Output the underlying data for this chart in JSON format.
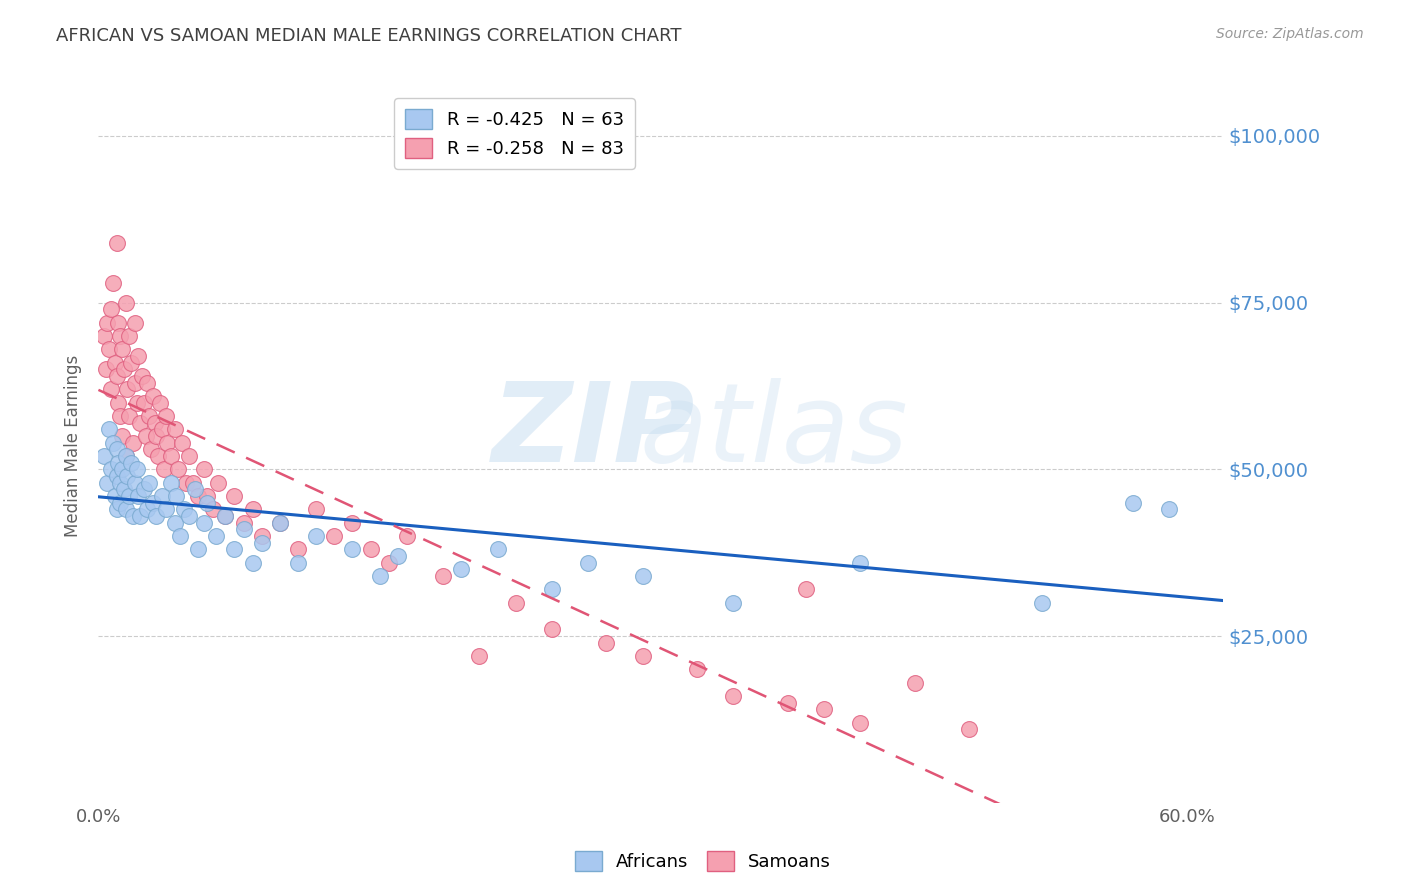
{
  "title": "AFRICAN VS SAMOAN MEDIAN MALE EARNINGS CORRELATION CHART",
  "source": "Source: ZipAtlas.com",
  "ylabel": "Median Male Earnings",
  "watermark_zip": "ZIP",
  "watermark_atlas": "atlas",
  "legend_entries": [
    {
      "label": "R = -0.425   N = 63",
      "color": "#a8c8f0",
      "edge": "#7aaad0"
    },
    {
      "label": "R = -0.258   N = 83",
      "color": "#f5a0b0",
      "edge": "#e06080"
    }
  ],
  "legend_labels_bottom": [
    "Africans",
    "Samoans"
  ],
  "ytick_labels": [
    "$25,000",
    "$50,000",
    "$75,000",
    "$100,000"
  ],
  "ytick_values": [
    25000,
    50000,
    75000,
    100000
  ],
  "ylim": [
    0,
    107000
  ],
  "xlim": [
    0.0,
    0.62
  ],
  "african_color": "#a8c8f0",
  "african_edge": "#7aaad0",
  "samoan_color": "#f5a0b0",
  "samoan_edge": "#e06080",
  "african_line_color": "#1a5fbf",
  "samoan_line_color": "#e05575",
  "background_color": "#ffffff",
  "grid_color": "#cccccc",
  "title_color": "#404040",
  "axis_label_color": "#606060",
  "right_tick_color": "#5090d0",
  "africans_x": [
    0.003,
    0.005,
    0.006,
    0.007,
    0.008,
    0.009,
    0.01,
    0.01,
    0.01,
    0.011,
    0.012,
    0.012,
    0.013,
    0.014,
    0.015,
    0.015,
    0.016,
    0.017,
    0.018,
    0.019,
    0.02,
    0.021,
    0.022,
    0.023,
    0.025,
    0.027,
    0.028,
    0.03,
    0.032,
    0.035,
    0.037,
    0.04,
    0.042,
    0.043,
    0.045,
    0.047,
    0.05,
    0.053,
    0.055,
    0.058,
    0.06,
    0.065,
    0.07,
    0.075,
    0.08,
    0.085,
    0.09,
    0.1,
    0.11,
    0.12,
    0.14,
    0.155,
    0.165,
    0.2,
    0.22,
    0.25,
    0.27,
    0.3,
    0.35,
    0.42,
    0.52,
    0.57,
    0.59
  ],
  "africans_y": [
    52000,
    48000,
    56000,
    50000,
    54000,
    46000,
    53000,
    49000,
    44000,
    51000,
    48000,
    45000,
    50000,
    47000,
    52000,
    44000,
    49000,
    46000,
    51000,
    43000,
    48000,
    50000,
    46000,
    43000,
    47000,
    44000,
    48000,
    45000,
    43000,
    46000,
    44000,
    48000,
    42000,
    46000,
    40000,
    44000,
    43000,
    47000,
    38000,
    42000,
    45000,
    40000,
    43000,
    38000,
    41000,
    36000,
    39000,
    42000,
    36000,
    40000,
    38000,
    34000,
    37000,
    35000,
    38000,
    32000,
    36000,
    34000,
    30000,
    36000,
    30000,
    45000,
    44000
  ],
  "samoans_x": [
    0.003,
    0.004,
    0.005,
    0.006,
    0.007,
    0.007,
    0.008,
    0.009,
    0.01,
    0.01,
    0.011,
    0.011,
    0.012,
    0.012,
    0.013,
    0.013,
    0.014,
    0.015,
    0.015,
    0.016,
    0.017,
    0.017,
    0.018,
    0.019,
    0.02,
    0.02,
    0.021,
    0.022,
    0.023,
    0.024,
    0.025,
    0.026,
    0.027,
    0.028,
    0.029,
    0.03,
    0.031,
    0.032,
    0.033,
    0.034,
    0.035,
    0.036,
    0.037,
    0.038,
    0.04,
    0.042,
    0.044,
    0.046,
    0.048,
    0.05,
    0.052,
    0.055,
    0.058,
    0.06,
    0.063,
    0.066,
    0.07,
    0.075,
    0.08,
    0.085,
    0.09,
    0.1,
    0.11,
    0.12,
    0.13,
    0.14,
    0.15,
    0.16,
    0.17,
    0.19,
    0.21,
    0.23,
    0.25,
    0.28,
    0.3,
    0.33,
    0.35,
    0.38,
    0.39,
    0.4,
    0.42,
    0.45,
    0.48
  ],
  "samoans_y": [
    70000,
    65000,
    72000,
    68000,
    74000,
    62000,
    78000,
    66000,
    64000,
    84000,
    60000,
    72000,
    70000,
    58000,
    68000,
    55000,
    65000,
    75000,
    52000,
    62000,
    70000,
    58000,
    66000,
    54000,
    63000,
    72000,
    60000,
    67000,
    57000,
    64000,
    60000,
    55000,
    63000,
    58000,
    53000,
    61000,
    57000,
    55000,
    52000,
    60000,
    56000,
    50000,
    58000,
    54000,
    52000,
    56000,
    50000,
    54000,
    48000,
    52000,
    48000,
    46000,
    50000,
    46000,
    44000,
    48000,
    43000,
    46000,
    42000,
    44000,
    40000,
    42000,
    38000,
    44000,
    40000,
    42000,
    38000,
    36000,
    40000,
    34000,
    22000,
    30000,
    26000,
    24000,
    22000,
    20000,
    16000,
    15000,
    32000,
    14000,
    12000,
    18000,
    11000
  ]
}
